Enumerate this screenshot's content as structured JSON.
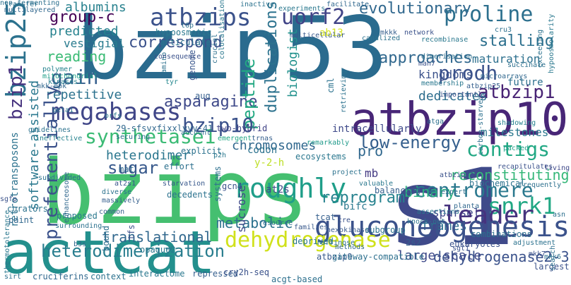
{
  "words": [
    {
      "text": "bzip53",
      "color": "#2a6b8e"
    },
    {
      "text": "bzips",
      "color": "#45bf70"
    },
    {
      "text": "actcat",
      "color": "#23908d"
    },
    {
      "text": "s1",
      "color": "#3f4a8a"
    },
    {
      "text": "atbzip10",
      "color": "#482677"
    },
    {
      "text": "bzip25",
      "color": "#2c728e"
    },
    {
      "text": "atbzips",
      "color": "#3b528b"
    },
    {
      "text": "uorf2",
      "color": "#414487"
    },
    {
      "text": "evolutionary",
      "color": "#31688e"
    },
    {
      "text": "proline",
      "color": "#2d708e"
    },
    {
      "text": "group-c",
      "color": "#440154"
    },
    {
      "text": "albumins",
      "color": "#27818e"
    },
    {
      "text": "predicted",
      "color": "#26828e"
    },
    {
      "text": "vestigial",
      "color": "#297b8e"
    },
    {
      "text": "stalling",
      "color": "#2d708e"
    },
    {
      "text": "approaches",
      "color": "#31688e"
    },
    {
      "text": "maturation",
      "color": "#2d708e"
    },
    {
      "text": "prodh",
      "color": "#3b528b"
    },
    {
      "text": "atbzip1",
      "color": "#482374"
    },
    {
      "text": "reading",
      "color": "#3bbb75"
    },
    {
      "text": "gain",
      "color": "#355f8d"
    },
    {
      "text": "correspond",
      "color": "#3b528b"
    },
    {
      "text": "duplications",
      "color": "#2c728e"
    },
    {
      "text": "biologist",
      "color": "#21918c"
    },
    {
      "text": "kingdoms",
      "color": "#3b528b"
    },
    {
      "text": "repetitive",
      "color": "#2c728e"
    },
    {
      "text": "megabases",
      "color": "#404688"
    },
    {
      "text": "asparagine",
      "color": "#3e4989"
    },
    {
      "text": "peptide",
      "color": "#23a983"
    },
    {
      "text": "dedicates",
      "color": "#2e6e8e"
    },
    {
      "text": "synthetase1",
      "color": "#3bbb75"
    },
    {
      "text": "bzip10",
      "color": "#3b528b"
    },
    {
      "text": "low-energy",
      "color": "#355f8d"
    },
    {
      "text": "contigs",
      "color": "#22a884"
    },
    {
      "text": "milestones",
      "color": "#2a778e"
    },
    {
      "text": "heterodimer",
      "color": "#2a768e"
    },
    {
      "text": "chromosomes",
      "color": "#31688e"
    },
    {
      "text": "pro",
      "color": "#31688e"
    },
    {
      "text": "reconstituting",
      "color": "#35b779"
    },
    {
      "text": "bzip1",
      "color": "#46327e"
    },
    {
      "text": "sugar",
      "color": "#38598c"
    },
    {
      "text": "centromere",
      "color": "#2a788e"
    },
    {
      "text": "preferentially",
      "color": "#3b528b"
    },
    {
      "text": "sparsely",
      "color": "#3e4989"
    },
    {
      "text": "binary",
      "color": "#29af7f"
    },
    {
      "text": "snrk1",
      "color": "#22a884"
    },
    {
      "text": "roughly",
      "color": "#1f9e89"
    },
    {
      "text": "mb",
      "color": "#443a83"
    },
    {
      "text": "translational",
      "color": "#31688e"
    },
    {
      "text": "frames",
      "color": "#2d708e"
    },
    {
      "text": "leader",
      "color": "#46337e"
    },
    {
      "text": "software-assisted",
      "color": "#2a788e"
    },
    {
      "text": "reprogram",
      "color": "#26828e"
    },
    {
      "text": "metabolic",
      "color": "#2c728e"
    },
    {
      "text": "sucrose",
      "color": "#3e4a89"
    },
    {
      "text": "gluconeogenesis",
      "color": "#3b528b"
    },
    {
      "text": "dehydrogenase",
      "color": "#d0e11c"
    },
    {
      "text": "heterodimerization",
      "color": "#287d8e"
    },
    {
      "text": "dehydrogenase2-3",
      "color": "#3b528b"
    },
    {
      "text": "large-scale",
      "color": "#3e4989"
    },
    {
      "text": "retrotransposons",
      "color": "#2c728e"
    },
    {
      "text": "ab13",
      "color": "#d2e21b"
    },
    {
      "text": "hypoosmotic",
      "color": "#2a788e"
    },
    {
      "text": "articulate",
      "color": "#2d708e"
    },
    {
      "text": "polymer",
      "color": "#25838e"
    },
    {
      "text": "mitochondrial",
      "color": "#1fa088"
    },
    {
      "text": "kinases1",
      "color": "#27808e"
    },
    {
      "text": "amino",
      "color": "#2c728e"
    },
    {
      "text": "genome",
      "color": "#39568c"
    },
    {
      "text": "tyr",
      "color": "#24878e"
    },
    {
      "text": "aug",
      "color": "#355f8d"
    },
    {
      "text": "29-sfsvxfixxlyyv-41",
      "color": "#31688e"
    },
    {
      "text": "guidelines",
      "color": "#2c728e"
    },
    {
      "text": "ineffective",
      "color": "#26828e"
    },
    {
      "text": "securing",
      "color": "#2d708e"
    },
    {
      "text": "two-hybrid",
      "color": "#414487"
    },
    {
      "text": "account",
      "color": "#2e6e8e"
    },
    {
      "text": "emergent",
      "color": "#22a785"
    },
    {
      "text": "trnas",
      "color": "#355f8d"
    },
    {
      "text": "codon",
      "color": "#2c728e"
    },
    {
      "text": "ecosystems",
      "color": "#2a778e"
    },
    {
      "text": "remarkably",
      "color": "#1f9a8a"
    },
    {
      "text": "intracellularly",
      "color": "#3e4989"
    },
    {
      "text": "atga",
      "color": "#2d708e"
    },
    {
      "text": "shadowing",
      "color": "#26828e"
    },
    {
      "text": "carbon-starved",
      "color": "#2d708e"
    },
    {
      "text": "packed",
      "color": "#1fa088"
    },
    {
      "text": "recapitulates",
      "color": "#3b528b"
    },
    {
      "text": "frequently",
      "color": "#2d708e"
    },
    {
      "text": "living",
      "color": "#3e4989"
    },
    {
      "text": "explicit",
      "color": "#2c728e"
    },
    {
      "text": "p2h",
      "color": "#2a788e"
    },
    {
      "text": "mat",
      "color": "#31688e"
    },
    {
      "text": "effort",
      "color": "#2d708e"
    },
    {
      "text": "diverse",
      "color": "#2c728e"
    },
    {
      "text": "massively",
      "color": "#355f8d"
    },
    {
      "text": "starvation",
      "color": "#38598c"
    },
    {
      "text": "decedents",
      "color": "#2c728e"
    },
    {
      "text": "systems",
      "color": "#2d708e"
    },
    {
      "text": "y-2-h",
      "color": "#bddf26"
    },
    {
      "text": "at2s1",
      "color": "#39568c"
    },
    {
      "text": "at2s",
      "color": "#3e4989"
    },
    {
      "text": "gcn4",
      "color": "#3b528b"
    },
    {
      "text": "knock-out",
      "color": "#2c728e"
    },
    {
      "text": "asn",
      "color": "#2d708e"
    },
    {
      "text": "bifc",
      "color": "#2a788e"
    },
    {
      "text": "tcat",
      "color": "#355f8d"
    },
    {
      "text": "cre",
      "color": "#3b528b"
    },
    {
      "text": "hexokinase",
      "color": "#38598c"
    },
    {
      "text": "combinations",
      "color": "#2d708e"
    },
    {
      "text": "adjustment",
      "color": "#2c728e"
    },
    {
      "text": "proposed",
      "color": "#2a788e"
    },
    {
      "text": "common",
      "color": "#355f8d"
    },
    {
      "text": "paint",
      "color": "#31688e"
    },
    {
      "text": "surrounding",
      "color": "#2c728e"
    },
    {
      "text": "b3s",
      "color": "#31688e"
    },
    {
      "text": "bound",
      "color": "#2d708e"
    },
    {
      "text": "tfs",
      "color": "#3b528b"
    },
    {
      "text": "opaque2",
      "color": "#2a788e"
    },
    {
      "text": "resource",
      "color": "#2d708e"
    },
    {
      "text": "families",
      "color": "#38598c"
    },
    {
      "text": "subgroup",
      "color": "#2c728e"
    },
    {
      "text": "methods",
      "color": "#31688e"
    },
    {
      "text": "2s2",
      "color": "#355f8d"
    },
    {
      "text": "eukaryotes",
      "color": "#3b528b"
    },
    {
      "text": "mkk6",
      "color": "#2d708e"
    },
    {
      "text": "mkk7",
      "color": "#3b528b"
    },
    {
      "text": "raffinose",
      "color": "#2c728e"
    },
    {
      "text": "deprived",
      "color": "#2a788e"
    },
    {
      "text": "atbzip9",
      "color": "#38598c"
    },
    {
      "text": "gateway-compatible",
      "color": "#2d708e"
    },
    {
      "text": "largest",
      "color": "#3b528b"
    },
    {
      "text": "sirt",
      "color": "#2d708e"
    },
    {
      "text": "cruciferins",
      "color": "#31688e"
    },
    {
      "text": "context",
      "color": "#2c728e"
    },
    {
      "text": "interactome",
      "color": "#2a788e"
    },
    {
      "text": "repressed",
      "color": "#355f8d"
    },
    {
      "text": "cry2h-seq",
      "color": "#3b528b"
    },
    {
      "text": "acgt-based",
      "color": "#2d708e"
    },
    {
      "text": "transfer",
      "color": "#2d708e"
    },
    {
      "text": "inactive",
      "color": "#2c728e"
    },
    {
      "text": "experiments",
      "color": "#2a788e"
    },
    {
      "text": "facilitate",
      "color": "#31688e"
    },
    {
      "text": "succinate",
      "color": "#2d708e"
    },
    {
      "text": "canalized",
      "color": "#2c728e"
    },
    {
      "text": "recombinase",
      "color": "#2a788e"
    },
    {
      "text": "mkkk",
      "color": "#355f8d"
    },
    {
      "text": "network",
      "color": "#3b528b"
    },
    {
      "text": "cru3",
      "color": "#2d708e"
    },
    {
      "text": "exceeding",
      "color": "#2c728e"
    },
    {
      "text": "hypoosmolarity",
      "color": "#2a788e"
    },
    {
      "text": "multicellular",
      "color": "#38598c"
    },
    {
      "text": "dimerisation",
      "color": "#2d708e"
    },
    {
      "text": "cml",
      "color": "#2c728e"
    },
    {
      "text": "microarrays",
      "color": "#31688e"
    },
    {
      "text": "membership",
      "color": "#2a788e"
    },
    {
      "text": "atbzip25",
      "color": "#355f8d"
    },
    {
      "text": "importantly",
      "color": "#3b528b"
    },
    {
      "text": "future",
      "color": "#2d708e"
    },
    {
      "text": "man7",
      "color": "#3b528b"
    },
    {
      "text": "project",
      "color": "#2c728e"
    },
    {
      "text": "valuable",
      "color": "#2a788e"
    },
    {
      "text": "expert",
      "color": "#2d708e"
    },
    {
      "text": "planta",
      "color": "#31688e"
    },
    {
      "text": "biochemical",
      "color": "#2c728e"
    },
    {
      "text": "sgt1",
      "color": "#3b528b"
    },
    {
      "text": "search",
      "color": "#2d708e"
    },
    {
      "text": "balancing",
      "color": "#355f8d"
    },
    {
      "text": "assertions",
      "color": "#2a788e"
    },
    {
      "text": "sgfp",
      "color": "#3b528b"
    },
    {
      "text": "curators",
      "color": "#2c728e"
    },
    {
      "text": "t6p",
      "color": "#2d708e"
    },
    {
      "text": "mkk-mpk",
      "color": "#31688e"
    },
    {
      "text": "orfs",
      "color": "#2a788e"
    },
    {
      "text": "beta1",
      "color": "#2d708e"
    },
    {
      "text": "subdivided",
      "color": "#2c728e"
    },
    {
      "text": "enhanceosome",
      "color": "#31688e"
    },
    {
      "text": "colocalisation",
      "color": "#2a788e"
    },
    {
      "text": "crucial",
      "color": "#2d708e"
    },
    {
      "text": "consequence",
      "color": "#3b528b"
    },
    {
      "text": "retrieving",
      "color": "#2c728e"
    },
    {
      "text": "thermotolerance",
      "color": "#2a788e"
    },
    {
      "text": "multilayered",
      "color": "#31688e"
    },
    {
      "text": "atbzip63",
      "color": "#3b528b"
    },
    {
      "text": "non-fermenting",
      "color": "#2d708e"
    }
  ]
}
